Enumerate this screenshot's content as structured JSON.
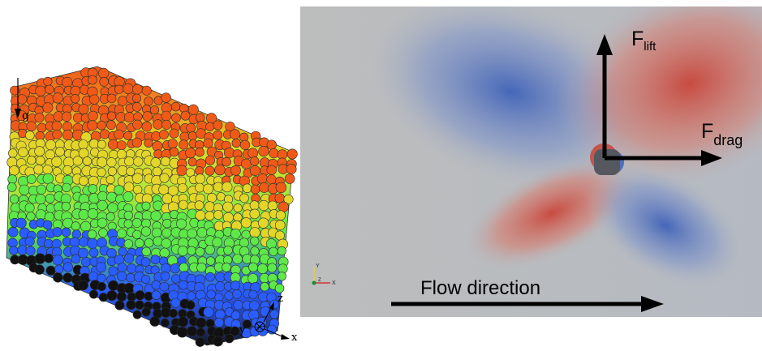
{
  "left_panel": {
    "gravity_label": "g",
    "axes": {
      "z": "z",
      "y": "y",
      "x": "x"
    },
    "colors": {
      "bottom_layer": "#111111",
      "blue": "#2a5cff",
      "green": "#5fe84a",
      "yellow": "#e3d62a",
      "orange": "#f05a18"
    }
  },
  "right_panel": {
    "background": "#b8bcc2",
    "lift": {
      "main": "F",
      "sub": "lift"
    },
    "drag": {
      "main": "F",
      "sub": "drag"
    },
    "flow_label": "Flow direction",
    "mini_axes": {
      "y": "Y",
      "z": "Z",
      "x": "X"
    },
    "colors": {
      "red_lobe": "#c8453a",
      "blue_lobe": "#3f62b8",
      "particle": "#55585f"
    }
  }
}
